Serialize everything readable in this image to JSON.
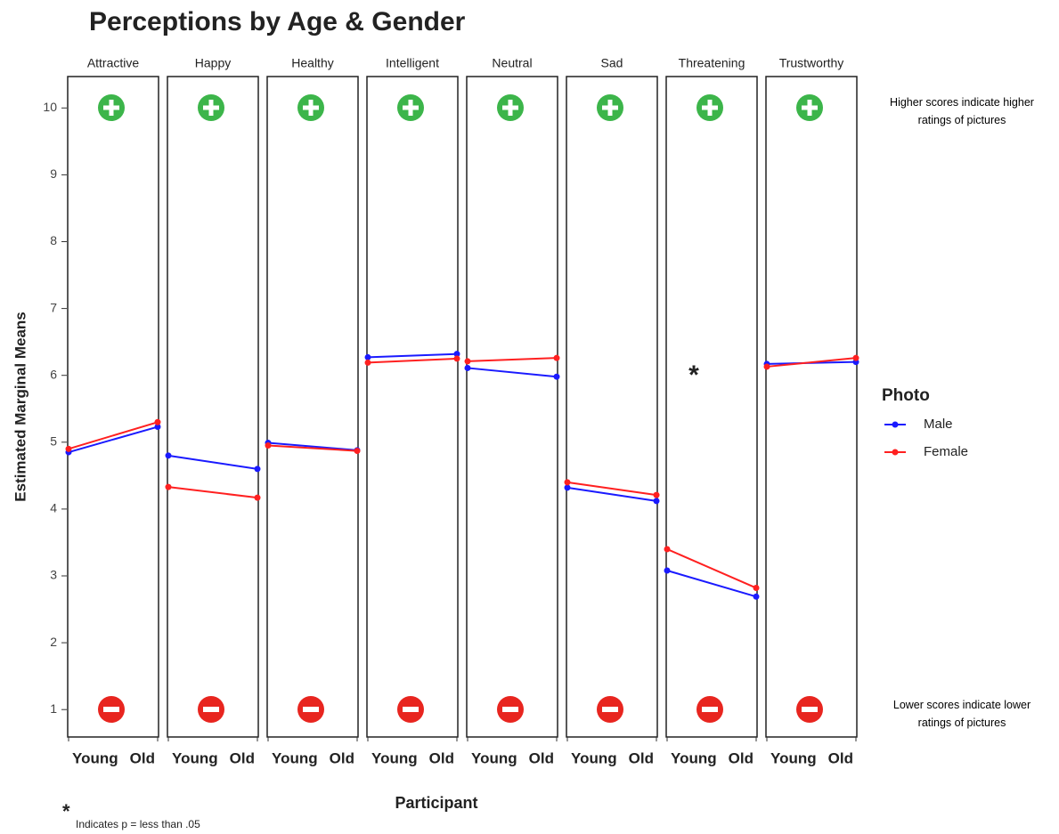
{
  "chart_data": {
    "type": "line",
    "title": "Perceptions by Age & Gender",
    "xlabel": "Participant",
    "ylabel": "Estimated Marginal Means",
    "panels": [
      "Attractive",
      "Happy",
      "Healthy",
      "Intelligent",
      "Neutral",
      "Sad",
      "Threatening",
      "Trustworthy"
    ],
    "categories": [
      "Young",
      "Old"
    ],
    "legend_title": "Photo",
    "series": [
      {
        "name": "Male",
        "color": "#1a1aff",
        "values": [
          [
            4.85,
            5.23
          ],
          [
            4.8,
            4.6
          ],
          [
            4.99,
            4.88
          ],
          [
            6.27,
            6.32
          ],
          [
            6.11,
            5.98
          ],
          [
            4.32,
            4.12
          ],
          [
            3.08,
            2.69
          ],
          [
            6.17,
            6.2
          ]
        ]
      },
      {
        "name": "Female",
        "color": "#ff2020",
        "values": [
          [
            4.9,
            5.3
          ],
          [
            4.33,
            4.17
          ],
          [
            4.95,
            4.87
          ],
          [
            6.19,
            6.25
          ],
          [
            6.21,
            6.26
          ],
          [
            4.4,
            4.21
          ],
          [
            3.4,
            2.82
          ],
          [
            6.13,
            6.26
          ]
        ]
      }
    ],
    "ylim": [
      0.59,
      10.47
    ],
    "yticks": [
      1,
      2,
      3,
      4,
      5,
      6,
      7,
      8,
      9,
      10
    ],
    "annotations": {
      "high": "Higher scores indicate higher ratings of pictures",
      "low": "Lower scores indicate lower ratings of pictures",
      "star": "*",
      "footnote_star": "*",
      "footnote": "Indicates p = less than .05"
    }
  }
}
